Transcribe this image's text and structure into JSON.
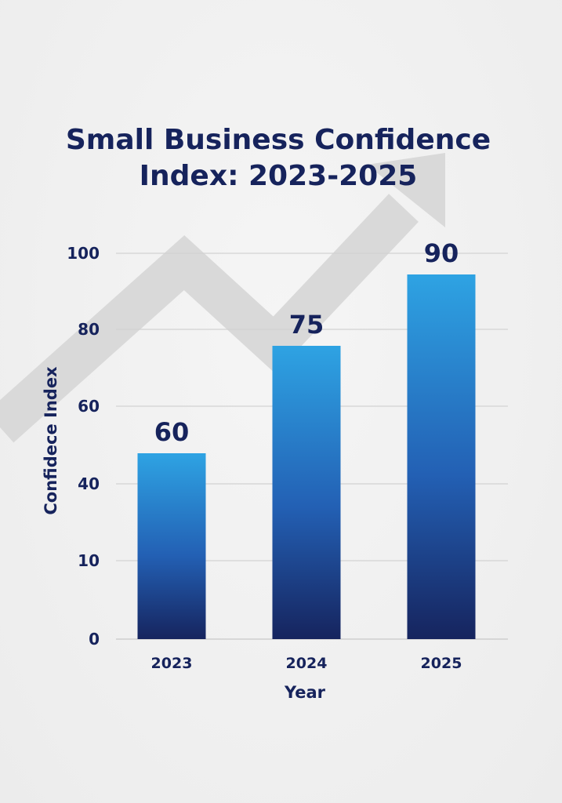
{
  "chart_data": {
    "type": "bar",
    "title": "Small Business Confidence Index: 2023-2025",
    "title_lines": [
      "Small Business Confidence",
      "Index: 2023-2025"
    ],
    "xlabel": "Year",
    "ylabel": "Confidece Index",
    "categories": [
      "2023",
      "2024",
      "2025"
    ],
    "values": [
      60,
      75,
      90
    ],
    "data_labels": [
      "60",
      "75",
      "90"
    ],
    "y_tick_labels": [
      "0",
      "10",
      "40",
      "60",
      "80",
      "100"
    ],
    "ylim": [
      0,
      100
    ],
    "grid": true,
    "background_decoration": "upward-trend-arrow",
    "colors": {
      "bar_top": "#2ea3e3",
      "bar_bottom": "#16245e",
      "text": "#16235c",
      "arrow": "#d9d9d9",
      "grid": "#d2d2d2"
    }
  }
}
